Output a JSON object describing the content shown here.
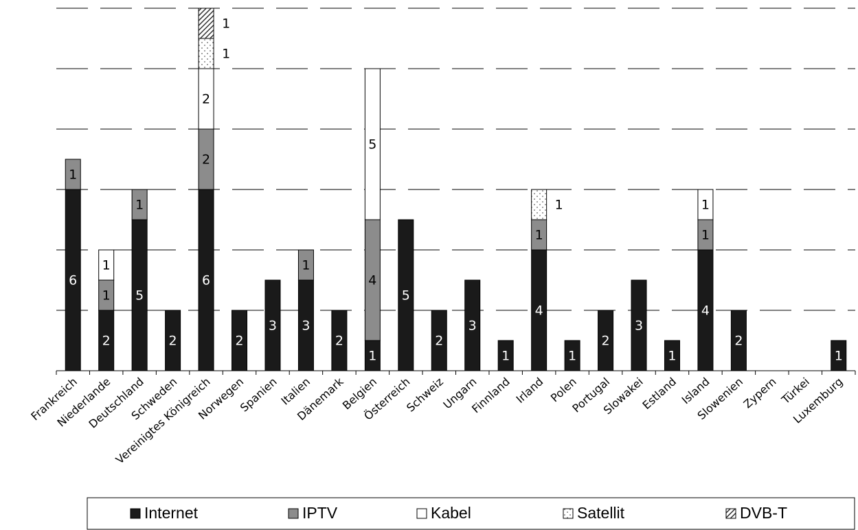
{
  "chart_data": {
    "type": "stacked_bar",
    "categories": [
      "Frankreich",
      "Niederlande",
      "Deutschland",
      "Schweden",
      "Vereinigtes Königreich",
      "Norwegen",
      "Spanien",
      "Italien",
      "Dänemark",
      "Belgien",
      "Österreich",
      "Schweiz",
      "Ungarn",
      "Finnland",
      "Irland",
      "Polen",
      "Portugal",
      "Slowakei",
      "Estland",
      "Island",
      "Slowenien",
      "Zypern",
      "Türkei",
      "Luxemburg"
    ],
    "series": [
      {
        "name": "Internet",
        "color": "#1a1a1a",
        "values": [
          6,
          2,
          5,
          2,
          6,
          2,
          3,
          3,
          2,
          1,
          5,
          2,
          3,
          1,
          4,
          1,
          2,
          3,
          1,
          4,
          2,
          null,
          null,
          1
        ]
      },
      {
        "name": "IPTV",
        "color": "#8c8c8c",
        "values": [
          1,
          1,
          1,
          null,
          2,
          null,
          null,
          1,
          null,
          4,
          null,
          null,
          null,
          null,
          1,
          null,
          null,
          null,
          null,
          1,
          null,
          null,
          null,
          null
        ]
      },
      {
        "name": "Kabel",
        "color": "#ffffff",
        "values": [
          null,
          1,
          null,
          null,
          2,
          null,
          null,
          null,
          null,
          5,
          null,
          null,
          null,
          null,
          null,
          null,
          null,
          null,
          null,
          1,
          null,
          null,
          null,
          null
        ]
      },
      {
        "name": "Satellit",
        "color": "#ffffff",
        "pattern": "dots",
        "values": [
          null,
          null,
          null,
          null,
          1,
          null,
          null,
          null,
          null,
          null,
          null,
          null,
          null,
          null,
          1,
          null,
          null,
          null,
          null,
          null,
          null,
          null,
          null,
          null
        ]
      },
      {
        "name": "DVB-T",
        "color": "#ffffff",
        "pattern": "hatch",
        "values": [
          null,
          null,
          null,
          null,
          1,
          null,
          null,
          null,
          null,
          null,
          null,
          null,
          null,
          null,
          null,
          null,
          null,
          null,
          null,
          null,
          null,
          null,
          null,
          null
        ]
      }
    ],
    "ylim": [
      0,
      12
    ],
    "yticks": [
      0,
      2,
      4,
      6,
      8,
      10,
      12
    ],
    "grid": true,
    "legend": "bottom"
  }
}
